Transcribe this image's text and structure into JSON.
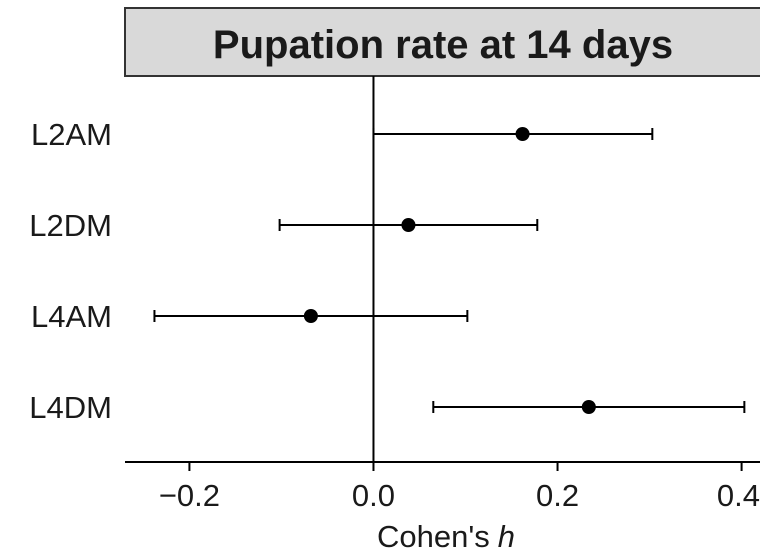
{
  "chart_data": {
    "type": "forest",
    "title": "Pupation rate at 14 days",
    "xlabel": "Cohen's",
    "xlabel_italic": "h",
    "xlim": [
      -0.27,
      0.42
    ],
    "x_ticks": [
      -0.2,
      0.0,
      0.2,
      0.4
    ],
    "x_tick_labels": [
      "−0.2",
      "0.0",
      "0.2",
      "0.4"
    ],
    "reference_line": 0.0,
    "grid": false,
    "categories": [
      "L2AM",
      "L2DM",
      "L4AM",
      "L4DM"
    ],
    "estimates": [
      0.162,
      0.038,
      -0.068,
      0.234
    ],
    "ci_low": [
      0.0,
      -0.102,
      -0.238,
      0.065
    ],
    "ci_high": [
      0.303,
      0.178,
      0.102,
      0.403
    ],
    "colors": {
      "point": "#000000",
      "line": "#000000",
      "strip_fill": "#d9d9d9",
      "strip_border": "#333333"
    }
  }
}
